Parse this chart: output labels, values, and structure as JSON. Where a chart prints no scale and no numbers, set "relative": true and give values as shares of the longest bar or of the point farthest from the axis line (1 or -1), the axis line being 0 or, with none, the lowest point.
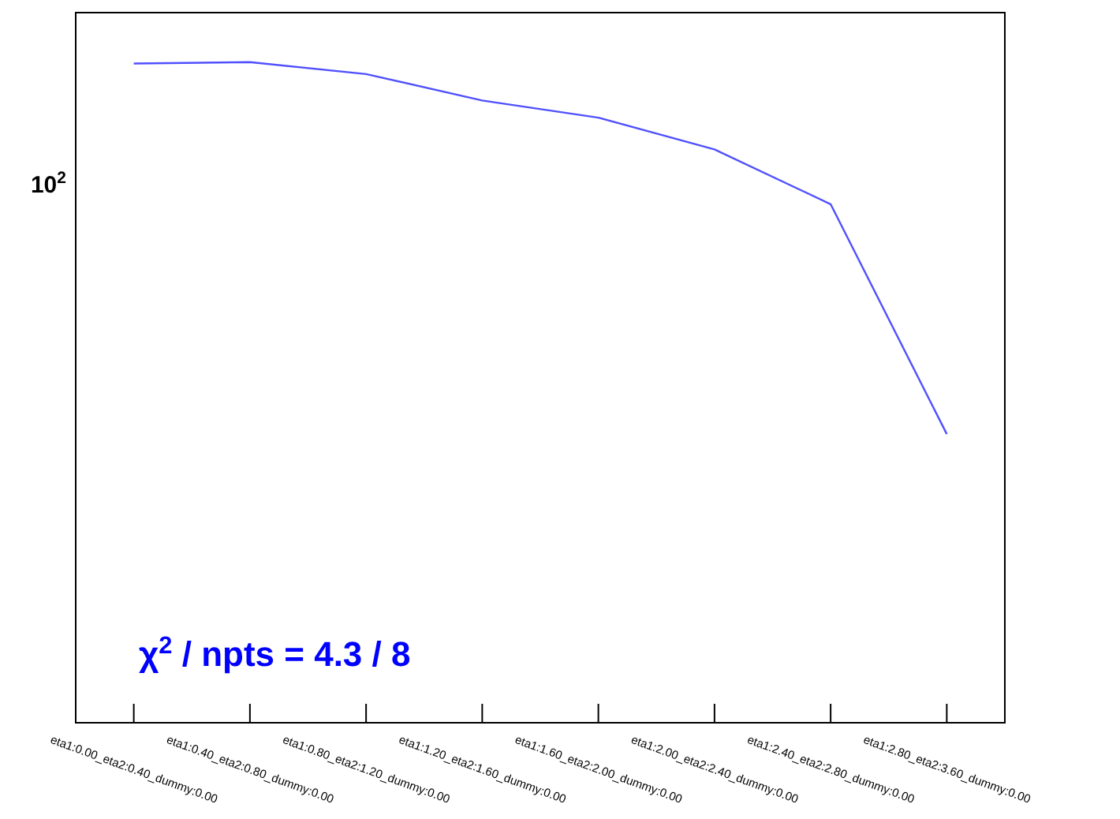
{
  "chart_data": {
    "type": "line",
    "relative": true,
    "grid": false,
    "categories": [
      "eta1:0.00_eta2:0.40_dummy:0.00",
      "eta1:0.40_eta2:0.80_dummy:0.00",
      "eta1:0.80_eta2:1.20_dummy:0.00",
      "eta1:1.20_eta2:1.60_dummy:0.00",
      "eta1:1.60_eta2:2.00_dummy:0.00",
      "eta1:2.00_eta2:2.40_dummy:0.00",
      "eta1:2.40_eta2:2.80_dummy:0.00",
      "eta1:2.80_eta2:3.60_dummy:0.00"
    ],
    "series": [
      {
        "color": "#5050ff",
        "values": [
          0.998,
          1,
          0.982,
          0.942,
          0.916,
          0.868,
          0.785,
          0.437
        ]
      }
    ],
    "annotations": [
      "χ$^{2}$ / npts = 4.3 / 8",
      "10$^{2}$"
    ]
  }
}
